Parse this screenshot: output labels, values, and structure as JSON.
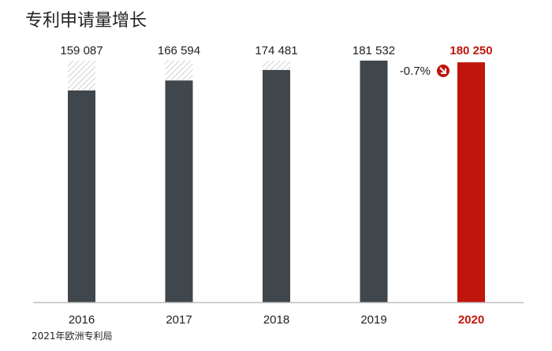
{
  "title": "专利申请量增长",
  "source": "2021年欧洲专利局",
  "chart_data": {
    "type": "bar",
    "title": "专利申请量增长",
    "categories": [
      "2016",
      "2017",
      "2018",
      "2019",
      "2020"
    ],
    "values": [
      159087,
      166594,
      174481,
      181532,
      180250
    ],
    "value_labels": [
      "159 087",
      "166 594",
      "174 481",
      "181 532",
      "180 250"
    ],
    "highlight_index": 4,
    "annotation": "-0.7%",
    "annotation_icon": "arrow-down-right-icon",
    "ylim": [
      0,
      181532
    ],
    "grid": false,
    "colors": {
      "bar": "#40474c",
      "highlight": "#c0150c",
      "hatch": "#b8b8b8",
      "axis": "#bdbdbd"
    }
  }
}
